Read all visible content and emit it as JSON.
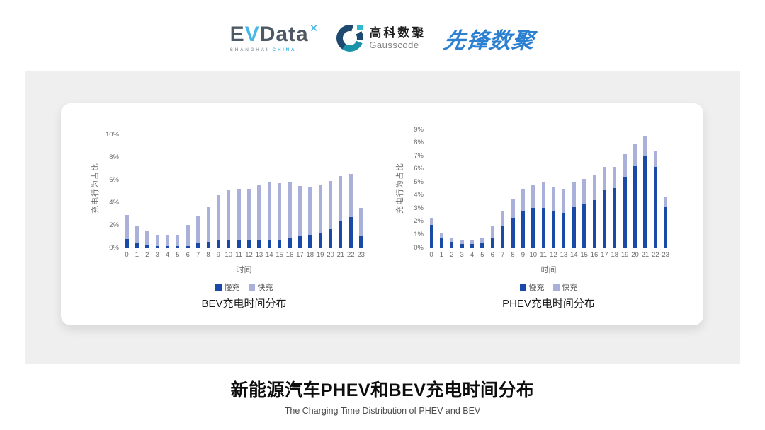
{
  "header": {
    "evdata": {
      "e": "E",
      "v": "V",
      "rest": "Data",
      "sup": "✕",
      "sub_left": "SHANGHAI",
      "sub_right": "CHINA"
    },
    "gausscode": {
      "cn": "高科数聚",
      "en": "Gausscode"
    },
    "pioneer": {
      "text": "先锋数聚"
    }
  },
  "footer": {
    "title": "新能源汽车PHEV和BEV充电时间分布",
    "subtitle": "The Charging Time Distribution of PHEV and BEV"
  },
  "colors": {
    "slow": "#1B49A8",
    "fast": "#A9B1DB",
    "axis": "#cfcfcf",
    "panel": "#efefef"
  },
  "chart_data": [
    {
      "type": "bar",
      "stacked": true,
      "title": "BEV充电时间分布",
      "xlabel": "时间",
      "ylabel": "充电行为占比",
      "x": [
        "0",
        "1",
        "2",
        "3",
        "4",
        "5",
        "6",
        "7",
        "8",
        "9",
        "10",
        "11",
        "12",
        "13",
        "14",
        "15",
        "16",
        "17",
        "18",
        "19",
        "20",
        "21",
        "22",
        "23"
      ],
      "ylim": [
        0,
        10
      ],
      "yticks": [
        "0%",
        "2%",
        "4%",
        "6%",
        "8%",
        "10%"
      ],
      "grid": false,
      "legend_position": "bottom",
      "series": [
        {
          "name": "慢充",
          "color": "#1B49A8",
          "values": [
            0.75,
            0.36,
            0.2,
            0.1,
            0.1,
            0.1,
            0.15,
            0.36,
            0.48,
            0.7,
            0.65,
            0.7,
            0.6,
            0.65,
            0.7,
            0.7,
            0.8,
            1.0,
            1.1,
            1.3,
            1.6,
            2.4,
            2.7,
            1.0
          ]
        },
        {
          "name": "快充",
          "color": "#A9B1DB",
          "values": [
            2.15,
            1.49,
            1.3,
            1.05,
            1.0,
            1.05,
            1.85,
            2.44,
            3.07,
            3.9,
            4.5,
            4.5,
            4.6,
            4.9,
            5.05,
            5.0,
            4.95,
            4.45,
            4.2,
            4.2,
            4.25,
            3.9,
            3.8,
            2.5
          ]
        }
      ]
    },
    {
      "type": "bar",
      "stacked": true,
      "title": "PHEV充电时间分布",
      "xlabel": "时间",
      "ylabel": "充电行为占比",
      "x": [
        "0",
        "1",
        "2",
        "3",
        "4",
        "5",
        "6",
        "7",
        "8",
        "9",
        "10",
        "11",
        "12",
        "13",
        "14",
        "15",
        "16",
        "17",
        "18",
        "19",
        "20",
        "21",
        "22",
        "23"
      ],
      "ylim": [
        0,
        9
      ],
      "yticks": [
        "0%",
        "1%",
        "2%",
        "3%",
        "4%",
        "5%",
        "6%",
        "7%",
        "8%",
        "9%"
      ],
      "grid": false,
      "legend_position": "bottom",
      "series": [
        {
          "name": "慢充",
          "color": "#1B49A8",
          "values": [
            1.75,
            0.77,
            0.45,
            0.25,
            0.27,
            0.32,
            0.73,
            1.6,
            2.29,
            2.8,
            3.0,
            3.0,
            2.79,
            2.64,
            3.1,
            3.3,
            3.6,
            4.4,
            4.55,
            5.4,
            6.2,
            7.0,
            6.15,
            3.05
          ]
        },
        {
          "name": "快充",
          "color": "#A9B1DB",
          "values": [
            0.5,
            0.38,
            0.32,
            0.3,
            0.28,
            0.36,
            0.87,
            1.13,
            1.37,
            1.7,
            1.77,
            2.0,
            1.81,
            1.84,
            1.9,
            1.95,
            1.9,
            1.75,
            1.6,
            1.7,
            1.75,
            1.45,
            1.2,
            0.8
          ]
        }
      ]
    }
  ]
}
